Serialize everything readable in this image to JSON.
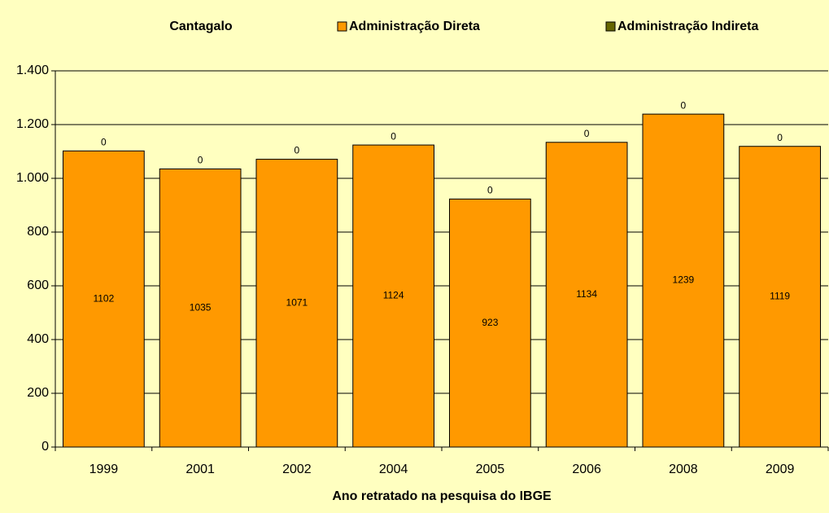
{
  "chart_data": {
    "type": "stacked_bar",
    "title": "Cantagalo",
    "x_label": "Ano retratado na pesquisa do IBGE",
    "categories": [
      "1999",
      "2001",
      "2002",
      "2004",
      "2005",
      "2006",
      "2008",
      "2009"
    ],
    "series": [
      {
        "name": "Administração Direta",
        "color": "#ff9900",
        "values": [
          1102,
          1035,
          1071,
          1124,
          923,
          1134,
          1239,
          1119
        ]
      },
      {
        "name": "Administração Indireta",
        "color": "#666600",
        "values": [
          0,
          0,
          0,
          0,
          0,
          0,
          0,
          0
        ]
      }
    ],
    "ylim": [
      0,
      1400
    ],
    "yticks": [
      0,
      200,
      400,
      600,
      800,
      {
        "value": 1000,
        "label": "1.000"
      },
      {
        "value": 1200,
        "label": "1.200"
      },
      {
        "value": 1400,
        "label": "1.400"
      }
    ],
    "grid": true,
    "legend": "top"
  }
}
